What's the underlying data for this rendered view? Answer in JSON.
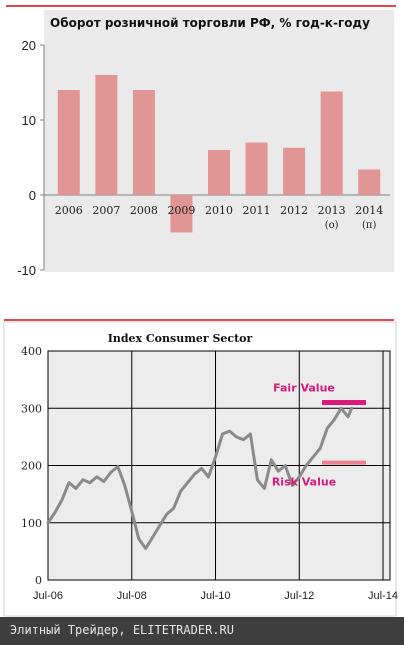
{
  "chart_data": [
    {
      "type": "bar",
      "title": "Оборот розничной торговли РФ, % год-к-году",
      "categories": [
        "2006",
        "2007",
        "2008",
        "2009",
        "2010",
        "2011",
        "2012",
        "2013",
        "2014"
      ],
      "category_notes": [
        "",
        "",
        "",
        "",
        "",
        "",
        "",
        "(о)",
        "(п)"
      ],
      "values": [
        14,
        16,
        14,
        -5,
        6,
        7,
        6.3,
        13.8,
        3.4
      ],
      "ylim": [
        -10,
        20
      ],
      "yticks": [
        -10,
        0,
        10,
        20
      ],
      "grid": false,
      "colors": {
        "bar": "#e29595",
        "accent_line": "#e04848",
        "plot_bg": "#eaeaea"
      }
    },
    {
      "type": "line",
      "title": "Index Consumer Sector",
      "xlim": [
        "2006-07",
        "2014-09"
      ],
      "xticks": [
        "2006-07",
        "2008-07",
        "2010-07",
        "2012-07",
        "2014-07"
      ],
      "xtick_labels": [
        "Jul-06",
        "Jul-08",
        "Jul-10",
        "Jul-12",
        "Jul-14"
      ],
      "ylim": [
        0,
        400
      ],
      "yticks": [
        0,
        100,
        200,
        300,
        400
      ],
      "grid": true,
      "series": [
        {
          "x": [
            "2006-07",
            "2006-09",
            "2006-11",
            "2007-01",
            "2007-03",
            "2007-05",
            "2007-07",
            "2007-09",
            "2007-11",
            "2008-01",
            "2008-03",
            "2008-05",
            "2008-07",
            "2008-09",
            "2008-11",
            "2009-01",
            "2009-03",
            "2009-05",
            "2009-07",
            "2009-09",
            "2009-11",
            "2010-01",
            "2010-03",
            "2010-05",
            "2010-07",
            "2010-09",
            "2010-11",
            "2011-01",
            "2011-03",
            "2011-05",
            "2011-07",
            "2011-09",
            "2011-11",
            "2012-01",
            "2012-03",
            "2012-05",
            "2012-07",
            "2012-09",
            "2012-11",
            "2013-01",
            "2013-03",
            "2013-05",
            "2013-07",
            "2013-09",
            "2013-10"
          ],
          "y": [
            100,
            118,
            140,
            170,
            160,
            175,
            170,
            180,
            172,
            188,
            198,
            165,
            120,
            72,
            55,
            75,
            95,
            115,
            125,
            155,
            170,
            185,
            195,
            180,
            215,
            255,
            260,
            250,
            245,
            255,
            175,
            160,
            210,
            190,
            200,
            165,
            180,
            200,
            215,
            230,
            265,
            280,
            300,
            285,
            300
          ],
          "color": "#8a8a8a"
        }
      ],
      "annotations": [
        {
          "text": "Fair Value",
          "y": 310,
          "color": "#d81b7a"
        },
        {
          "text": "Risk Value",
          "y": 205,
          "color": "#d81b7a"
        }
      ],
      "colors": {
        "plot_bg": "#ececec",
        "accent_line": "#e04848",
        "marker": "#d81b7a",
        "marker_light": "#ee8090"
      }
    }
  ],
  "footer": {
    "text": "Элитный Трейдер, ELITETRADER.RU"
  }
}
